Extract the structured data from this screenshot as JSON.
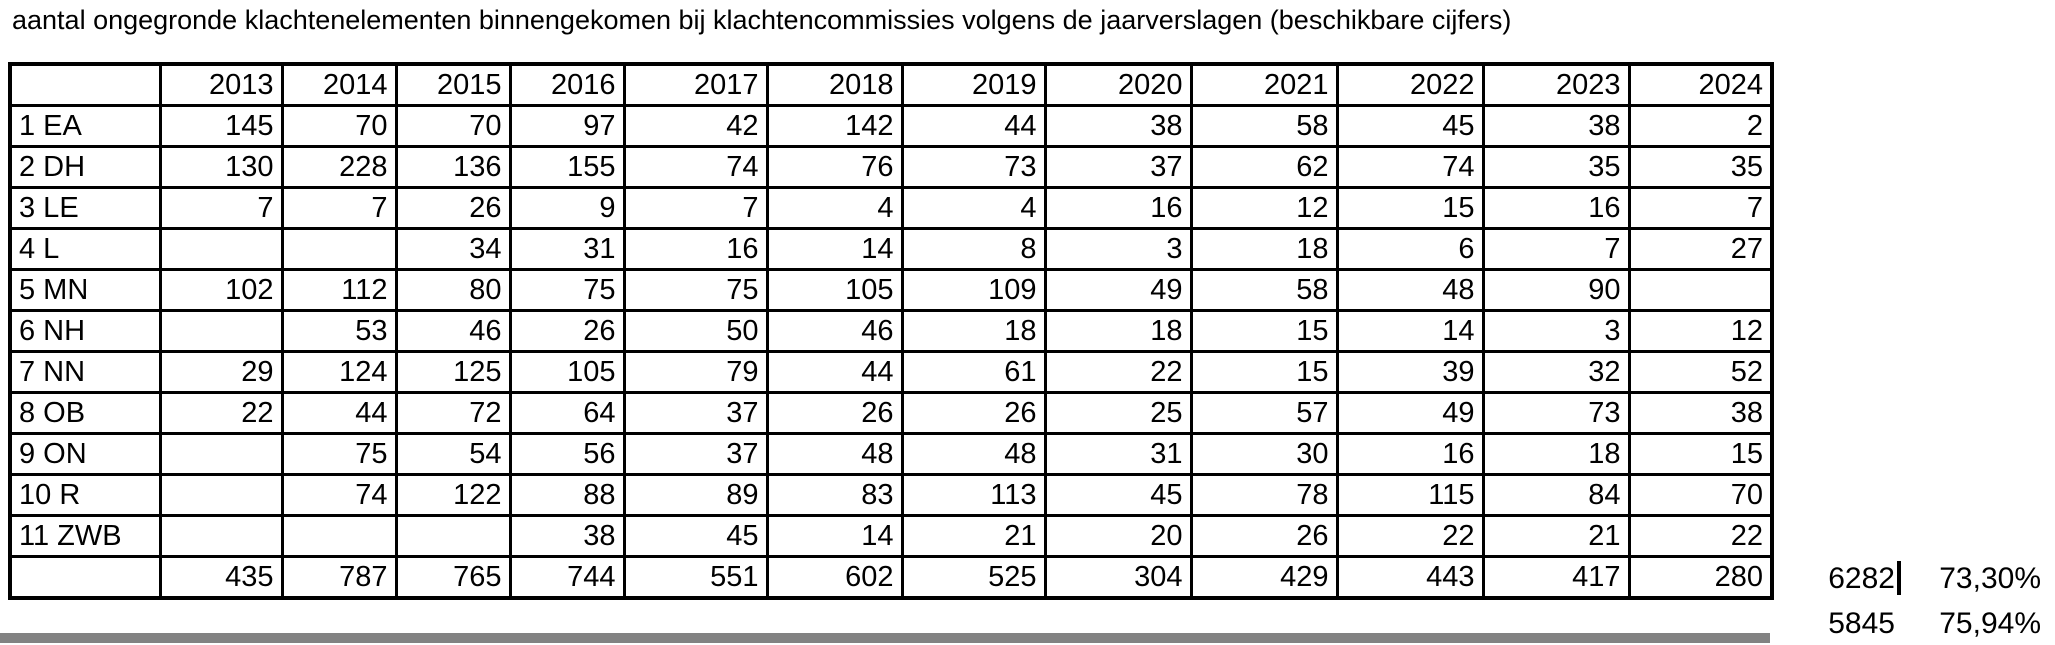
{
  "title": "aantal ongegronde klachtenelementen binnengekomen bij klachtencommissies volgens de jaarverslagen (beschikbare cijfers)",
  "table": {
    "columns": [
      "",
      "2013",
      "2014",
      "2015",
      "2016",
      "2017",
      "2018",
      "2019",
      "2020",
      "2021",
      "2022",
      "2023",
      "2024"
    ],
    "rows": [
      {
        "label": "1 EA",
        "values": [
          "145",
          "70",
          "70",
          "97",
          "42",
          "142",
          "44",
          "38",
          "58",
          "45",
          "38",
          "2"
        ]
      },
      {
        "label": "2 DH",
        "values": [
          "130",
          "228",
          "136",
          "155",
          "74",
          "76",
          "73",
          "37",
          "62",
          "74",
          "35",
          "35"
        ]
      },
      {
        "label": "3 LE",
        "values": [
          "7",
          "7",
          "26",
          "9",
          "7",
          "4",
          "4",
          "16",
          "12",
          "15",
          "16",
          "7"
        ]
      },
      {
        "label": "4 L",
        "values": [
          "",
          "",
          "34",
          "31",
          "16",
          "14",
          "8",
          "3",
          "18",
          "6",
          "7",
          "27"
        ]
      },
      {
        "label": "5 MN",
        "values": [
          "102",
          "112",
          "80",
          "75",
          "75",
          "105",
          "109",
          "49",
          "58",
          "48",
          "90",
          ""
        ]
      },
      {
        "label": "6 NH",
        "values": [
          "",
          "53",
          "46",
          "26",
          "50",
          "46",
          "18",
          "18",
          "15",
          "14",
          "3",
          "12"
        ]
      },
      {
        "label": "7 NN",
        "values": [
          "29",
          "124",
          "125",
          "105",
          "79",
          "44",
          "61",
          "22",
          "15",
          "39",
          "32",
          "52"
        ]
      },
      {
        "label": "8 OB",
        "values": [
          "22",
          "44",
          "72",
          "64",
          "37",
          "26",
          "26",
          "25",
          "57",
          "49",
          "73",
          "38"
        ]
      },
      {
        "label": "9 ON",
        "values": [
          "",
          "75",
          "54",
          "56",
          "37",
          "48",
          "48",
          "31",
          "30",
          "16",
          "18",
          "15"
        ]
      },
      {
        "label": "10 R",
        "values": [
          "",
          "74",
          "122",
          "88",
          "89",
          "83",
          "113",
          "45",
          "78",
          "115",
          "84",
          "70"
        ]
      },
      {
        "label": "11 ZWB",
        "values": [
          "",
          "",
          "",
          "38",
          "45",
          "14",
          "21",
          "20",
          "26",
          "22",
          "21",
          "22"
        ]
      }
    ],
    "totals_row": {
      "label": "",
      "values": [
        "435",
        "787",
        "765",
        "744",
        "551",
        "602",
        "525",
        "304",
        "429",
        "443",
        "417",
        "280"
      ]
    }
  },
  "side": [
    {
      "value": "6282",
      "pct": "73,30%"
    },
    {
      "value": "5845",
      "pct": "75,94%"
    }
  ]
}
